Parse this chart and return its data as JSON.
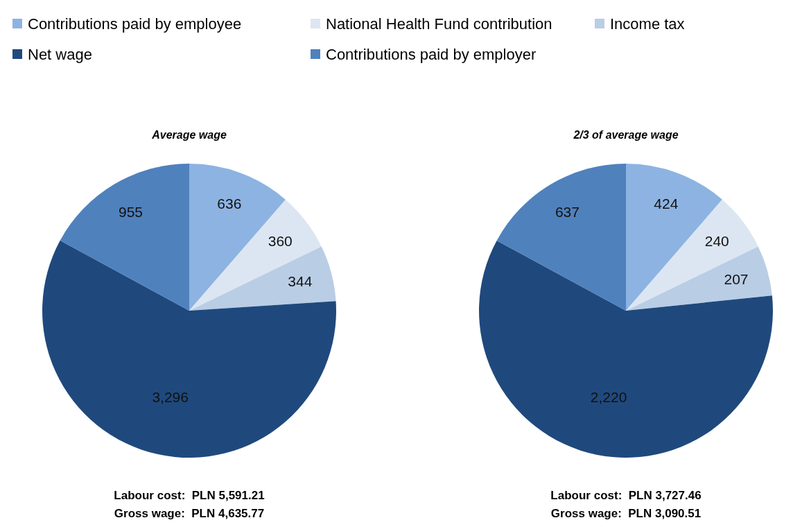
{
  "chart_data": [
    {
      "type": "pie",
      "title": "Average wage",
      "categories": [
        "Contributions paid by employee",
        "National Health Fund contribution",
        "Income tax",
        "Net wage",
        "Contributions paid by employer"
      ],
      "values": [
        636,
        360,
        344,
        3296,
        955
      ],
      "value_labels": [
        "636",
        "360",
        "344",
        "3,296",
        "955"
      ],
      "colors": [
        "#8db3e2",
        "#dce6f2",
        "#b9cde5",
        "#1f497d",
        "#4f81bd"
      ],
      "legend": "top",
      "annotations": [
        "Labour cost:  PLN 5,591.21",
        "Gross wage:  PLN 4,635.77"
      ]
    },
    {
      "type": "pie",
      "title": "2/3 of average wage",
      "categories": [
        null,
        null,
        null,
        null,
        null
      ],
      "values": [
        424,
        240,
        207,
        2220,
        637
      ],
      "value_labels": [
        "424",
        "240",
        "207",
        "2,220",
        "637"
      ],
      "colors": [
        "#8db3e2",
        "#dce6f2",
        "#b9cde5",
        "#1f497d",
        "#4f81bd"
      ],
      "annotations": [
        "Labour cost:  PLN 3,727.46",
        "Gross wage:  PLN 3,090.51"
      ]
    }
  ]
}
